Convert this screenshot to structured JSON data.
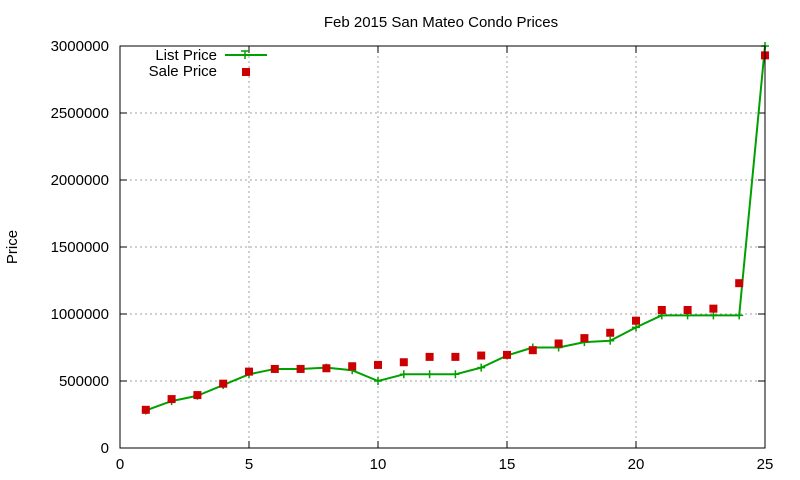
{
  "chart_data": {
    "type": "line",
    "title": "Feb 2015 San Mateo Condo Prices",
    "xlabel": "",
    "ylabel": "Price",
    "xlim": [
      0,
      25
    ],
    "ylim": [
      0,
      3000000
    ],
    "x_ticks": [
      "0",
      "5",
      "10",
      "15",
      "20",
      "25"
    ],
    "y_ticks": [
      "0",
      "500000",
      "1000000",
      "1500000",
      "2000000",
      "2500000",
      "3000000"
    ],
    "grid": true,
    "legend_position": "top-left",
    "x": [
      1,
      2,
      3,
      4,
      5,
      6,
      7,
      8,
      9,
      10,
      11,
      12,
      13,
      14,
      15,
      16,
      17,
      18,
      19,
      20,
      21,
      22,
      23,
      24,
      25
    ],
    "series": [
      {
        "name": "List Price",
        "style": "line-with-plus-markers",
        "color": "#00a000",
        "values": [
          280000,
          350000,
          390000,
          470000,
          550000,
          590000,
          590000,
          600000,
          580000,
          500000,
          550000,
          550000,
          550000,
          600000,
          690000,
          750000,
          750000,
          790000,
          800000,
          900000,
          990000,
          990000,
          990000,
          990000,
          3000000
        ]
      },
      {
        "name": "Sale Price",
        "style": "square-markers",
        "color": "#cc0000",
        "values": [
          285000,
          365000,
          395000,
          480000,
          570000,
          590000,
          590000,
          595000,
          610000,
          620000,
          640000,
          680000,
          680000,
          690000,
          695000,
          730000,
          780000,
          820000,
          860000,
          950000,
          1030000,
          1030000,
          1040000,
          1230000,
          2930000
        ]
      }
    ]
  }
}
